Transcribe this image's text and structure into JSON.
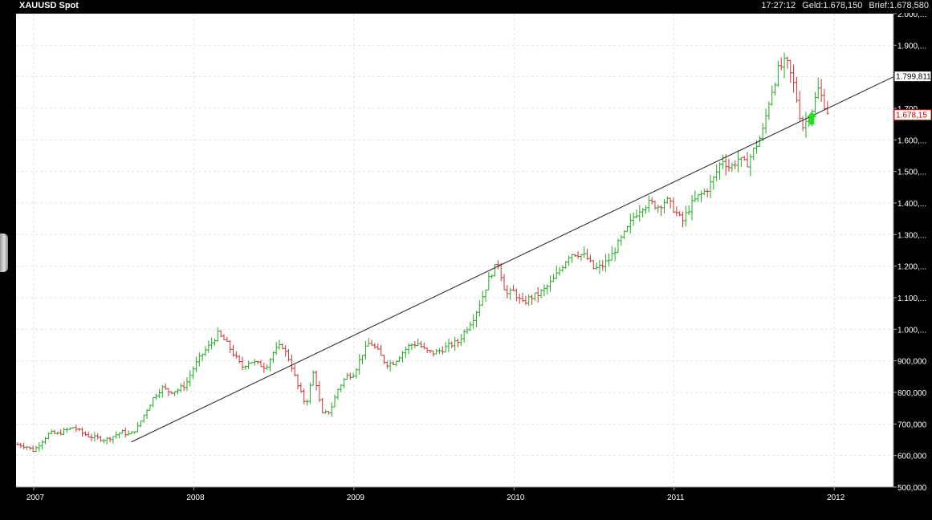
{
  "header": {
    "title": "XAUUSD Spot",
    "time": "17:27:12",
    "bid": "Geld:1.678,150",
    "ask": "Brief:1.678,580"
  },
  "chart_data": {
    "type": "ohlc",
    "period": "weekly",
    "ylim": [
      500000,
      2000000
    ],
    "yticks": [
      "500,000",
      "600,000",
      "700,000",
      "800,000",
      "900,000",
      "1.000,...",
      "1.100,...",
      "1.200,...",
      "1.300,...",
      "1.400,...",
      "1.500,...",
      "1.600,...",
      "1.700,...",
      "1.800,...",
      "1.900,...",
      "2.000,..."
    ],
    "yticks_values": [
      500,
      600,
      700,
      800,
      900,
      1000,
      1100,
      1200,
      1300,
      1400,
      1500,
      1600,
      1700,
      1800,
      1900,
      2000
    ],
    "xticks": [
      "2007",
      "2008",
      "2009",
      "2010",
      "2011",
      "2012"
    ],
    "xticks_values": [
      2007.0,
      2008.0,
      2009.0,
      2010.0,
      2011.0,
      2012.0
    ],
    "xlim": [
      2006.89,
      2012.37
    ],
    "trendline": {
      "from": {
        "x": 2007.61,
        "y": 643
      },
      "to": {
        "x": 2012.37,
        "y": 1800
      }
    },
    "price_labels": [
      {
        "text": "1.799,811",
        "value": 1800,
        "color": "#000000"
      },
      {
        "text": "1.678,15",
        "value": 1678,
        "color": "#cc0000"
      }
    ],
    "signal_arrow": {
      "x": 2011.86,
      "y": 1662,
      "color": "#22dd22"
    },
    "up_color": "#22aa22",
    "down_color": "#cc3333",
    "anchors": [
      [
        2006.9,
        635
      ],
      [
        2006.95,
        630
      ],
      [
        2007.0,
        615
      ],
      [
        2007.05,
        645
      ],
      [
        2007.1,
        672
      ],
      [
        2007.15,
        668
      ],
      [
        2007.2,
        680
      ],
      [
        2007.25,
        690
      ],
      [
        2007.3,
        672
      ],
      [
        2007.35,
        660
      ],
      [
        2007.4,
        655
      ],
      [
        2007.45,
        650
      ],
      [
        2007.5,
        662
      ],
      [
        2007.55,
        675
      ],
      [
        2007.6,
        665
      ],
      [
        2007.65,
        690
      ],
      [
        2007.7,
        740
      ],
      [
        2007.75,
        785
      ],
      [
        2007.8,
        815
      ],
      [
        2007.85,
        802
      ],
      [
        2007.9,
        808
      ],
      [
        2007.95,
        825
      ],
      [
        2008.0,
        880
      ],
      [
        2008.05,
        920
      ],
      [
        2008.1,
        950
      ],
      [
        2008.15,
        985
      ],
      [
        2008.2,
        960
      ],
      [
        2008.25,
        920
      ],
      [
        2008.3,
        880
      ],
      [
        2008.35,
        900
      ],
      [
        2008.4,
        890
      ],
      [
        2008.45,
        880
      ],
      [
        2008.5,
        930
      ],
      [
        2008.55,
        950
      ],
      [
        2008.6,
        900
      ],
      [
        2008.65,
        820
      ],
      [
        2008.7,
        760
      ],
      [
        2008.75,
        870
      ],
      [
        2008.8,
        730
      ],
      [
        2008.85,
        740
      ],
      [
        2008.9,
        810
      ],
      [
        2008.95,
        850
      ],
      [
        2009.0,
        860
      ],
      [
        2009.05,
        920
      ],
      [
        2009.1,
        960
      ],
      [
        2009.15,
        930
      ],
      [
        2009.2,
        890
      ],
      [
        2009.25,
        895
      ],
      [
        2009.3,
        925
      ],
      [
        2009.35,
        950
      ],
      [
        2009.4,
        955
      ],
      [
        2009.45,
        930
      ],
      [
        2009.5,
        925
      ],
      [
        2009.55,
        935
      ],
      [
        2009.6,
        950
      ],
      [
        2009.65,
        960
      ],
      [
        2009.7,
        1000
      ],
      [
        2009.75,
        1040
      ],
      [
        2009.8,
        1100
      ],
      [
        2009.85,
        1170
      ],
      [
        2009.9,
        1210
      ],
      [
        2009.95,
        1110
      ],
      [
        2010.0,
        1120
      ],
      [
        2010.05,
        1080
      ],
      [
        2010.1,
        1100
      ],
      [
        2010.15,
        1110
      ],
      [
        2010.2,
        1130
      ],
      [
        2010.25,
        1160
      ],
      [
        2010.3,
        1200
      ],
      [
        2010.35,
        1240
      ],
      [
        2010.4,
        1240
      ],
      [
        2010.45,
        1230
      ],
      [
        2010.5,
        1190
      ],
      [
        2010.55,
        1200
      ],
      [
        2010.6,
        1225
      ],
      [
        2010.65,
        1270
      ],
      [
        2010.7,
        1310
      ],
      [
        2010.75,
        1360
      ],
      [
        2010.8,
        1390
      ],
      [
        2010.85,
        1400
      ],
      [
        2010.9,
        1390
      ],
      [
        2010.95,
        1410
      ],
      [
        2011.0,
        1380
      ],
      [
        2011.05,
        1340
      ],
      [
        2011.1,
        1390
      ],
      [
        2011.15,
        1420
      ],
      [
        2011.2,
        1440
      ],
      [
        2011.25,
        1480
      ],
      [
        2011.3,
        1540
      ],
      [
        2011.35,
        1510
      ],
      [
        2011.4,
        1540
      ],
      [
        2011.45,
        1520
      ],
      [
        2011.5,
        1570
      ],
      [
        2011.55,
        1620
      ],
      [
        2011.6,
        1740
      ],
      [
        2011.65,
        1820
      ],
      [
        2011.7,
        1850
      ],
      [
        2011.75,
        1770
      ],
      [
        2011.8,
        1640
      ],
      [
        2011.85,
        1680
      ],
      [
        2011.9,
        1760
      ],
      [
        2011.95,
        1700
      ],
      [
        2011.97,
        1678
      ]
    ]
  }
}
